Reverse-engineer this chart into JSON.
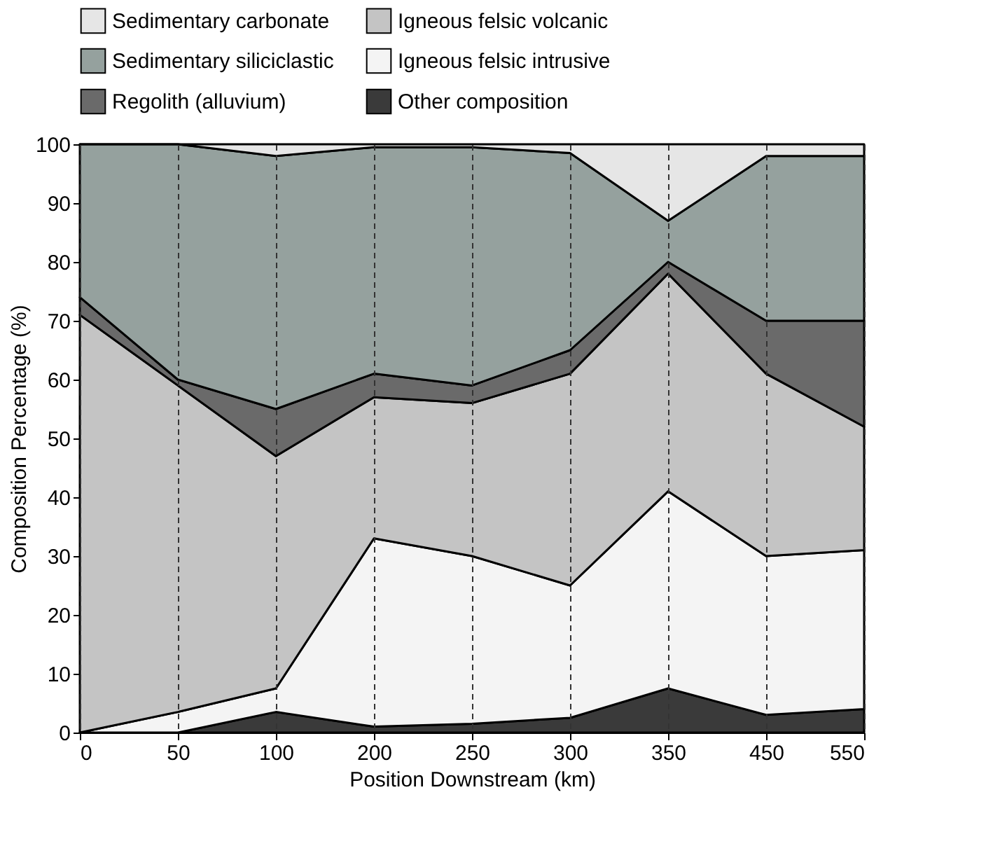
{
  "chart_data": {
    "type": "area",
    "stacked": true,
    "xlabel": "Position Downstream (km)",
    "ylabel": "Composition Percentage (%)",
    "categories": [
      "0",
      "50",
      "100",
      "200",
      "250",
      "300",
      "350",
      "450",
      "550"
    ],
    "series": [
      {
        "name": "Other composition",
        "color": "#3a3a3a",
        "values": [
          0,
          0,
          3.5,
          1,
          1.5,
          2.5,
          7.5,
          3,
          4
        ]
      },
      {
        "name": "Igneous felsic intrusive",
        "color": "#f4f4f4",
        "values": [
          0,
          3.5,
          4,
          32,
          28.5,
          22.5,
          33.5,
          27,
          27
        ]
      },
      {
        "name": "Igneous felsic volcanic",
        "color": "#c4c4c4",
        "values": [
          71,
          55.5,
          39.5,
          24,
          26,
          36,
          37,
          31,
          21
        ]
      },
      {
        "name": "Regolith (alluvium)",
        "color": "#6a6a6a",
        "values": [
          3,
          1,
          8,
          4,
          3,
          4,
          2,
          9,
          18
        ]
      },
      {
        "name": "Sedimentary siliciclastic",
        "color": "#95a19e",
        "values": [
          26,
          40,
          43,
          38.5,
          40.5,
          33.5,
          7,
          28,
          28
        ]
      },
      {
        "name": "Sedimentary carbonate",
        "color": "#e6e6e6",
        "values": [
          0,
          0,
          2,
          0.5,
          0.5,
          1.5,
          13,
          2,
          2
        ]
      }
    ],
    "ylim": [
      0,
      100
    ],
    "yticks": [
      0,
      10,
      20,
      30,
      40,
      50,
      60,
      70,
      80,
      90,
      100
    ],
    "grid": "x",
    "legend": "top"
  }
}
